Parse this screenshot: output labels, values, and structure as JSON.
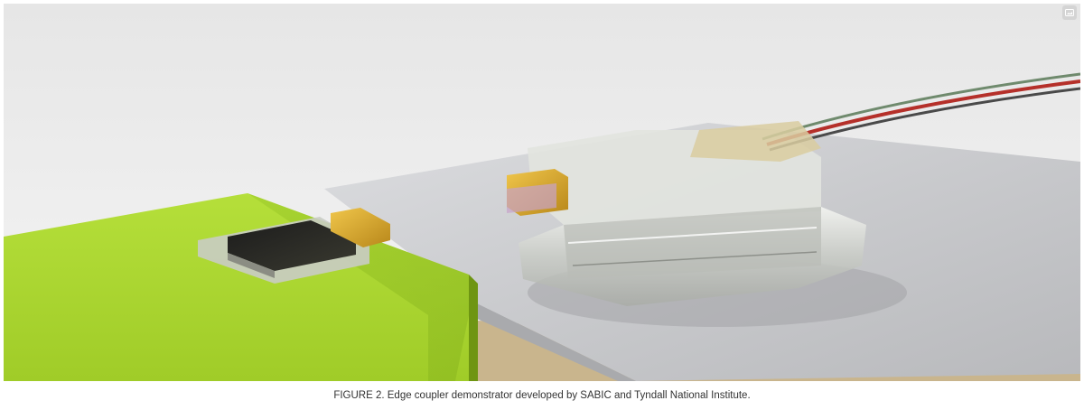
{
  "figure": {
    "caption": "FIGURE 2. Edge coupler demonstrator developed by SABIC and Tyndall National Institute.",
    "expand_icon": "image-expand-icon"
  },
  "colors": {
    "background": "#ffffff",
    "caption_text": "#333333",
    "green_block": "#a3d12a",
    "fiber_red": "#b5302a"
  }
}
